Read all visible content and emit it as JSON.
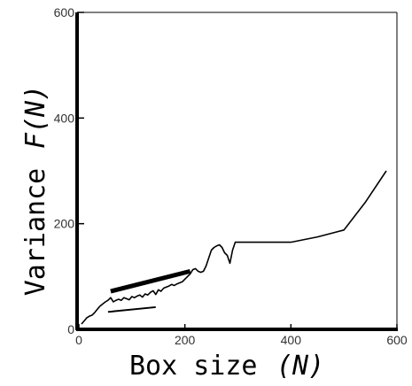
{
  "chart_data": {
    "type": "line",
    "xlabel_main": "Box size",
    "xlabel_var": "(N)",
    "ylabel_main": "Variance",
    "ylabel_var": "F(N)",
    "xlim": [
      0,
      600
    ],
    "ylim": [
      0,
      600
    ],
    "xticks": [
      0,
      200,
      400,
      600
    ],
    "yticks": [
      0,
      200,
      400,
      600
    ],
    "grid": false,
    "series": [
      {
        "x": [
          5,
          10,
          15,
          20,
          25,
          30,
          35,
          40,
          45,
          50,
          55,
          60,
          65,
          70,
          75,
          80,
          85,
          90,
          95,
          100,
          105,
          110,
          115,
          120,
          125,
          130,
          135,
          140,
          145,
          150,
          155,
          160,
          165,
          170,
          175,
          180,
          185,
          190,
          195,
          200,
          205,
          210,
          215,
          220,
          225,
          230,
          235,
          240,
          245,
          250,
          255,
          260,
          265,
          270,
          275,
          280,
          285,
          290,
          295,
          300,
          350,
          400,
          450,
          500,
          540,
          580
        ],
        "y": [
          10,
          16,
          22,
          25,
          27,
          32,
          38,
          44,
          48,
          52,
          55,
          60,
          52,
          55,
          57,
          55,
          60,
          58,
          56,
          62,
          60,
          63,
          65,
          61,
          67,
          65,
          70,
          73,
          66,
          75,
          72,
          78,
          80,
          82,
          85,
          83,
          86,
          88,
          90,
          95,
          100,
          105,
          113,
          115,
          110,
          108,
          110,
          120,
          135,
          150,
          155,
          158,
          160,
          155,
          145,
          140,
          125,
          150,
          165,
          165,
          165,
          165,
          175,
          188,
          240,
          300
        ]
      }
    ],
    "reference_lines": [
      {
        "x": [
          60,
          210
        ],
        "y": [
          72,
          110
        ],
        "style": "thick"
      },
      {
        "x": [
          55,
          145
        ],
        "y": [
          33,
          42
        ],
        "style": "thin"
      }
    ]
  }
}
